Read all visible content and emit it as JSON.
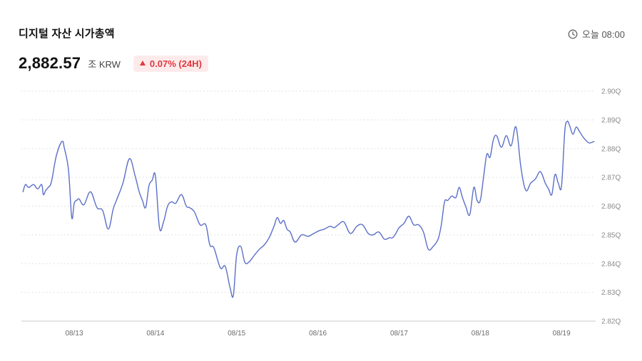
{
  "header": {
    "title": "디지털 자산 시가총액",
    "time_label": "오늘 08:00",
    "value": "2,882.57",
    "unit": "조 KRW",
    "change": "0.07% (24H)",
    "change_direction": "up",
    "change_color": "#e0383e"
  },
  "chart_data": {
    "type": "line",
    "title": "",
    "xlabel": "",
    "ylabel": "",
    "line_color": "#5b6fc7",
    "grid": "horizontal-dotted",
    "y_axis_position": "right",
    "ylim": [
      2.82,
      2.9
    ],
    "y_ticks": [
      "2.90Q",
      "2.89Q",
      "2.88Q",
      "2.87Q",
      "2.86Q",
      "2.85Q",
      "2.84Q",
      "2.83Q",
      "2.82Q"
    ],
    "y_tick_values": [
      2.9,
      2.89,
      2.88,
      2.87,
      2.86,
      2.85,
      2.84,
      2.83,
      2.82
    ],
    "x_tick_labels": [
      "08/13",
      "08/14",
      "08/15",
      "08/16",
      "08/17",
      "08/18",
      "08/19"
    ],
    "x_tick_positions": [
      1,
      2,
      3,
      4,
      5,
      6,
      7
    ],
    "xlim": [
      0.35,
      7.42
    ],
    "series": [
      {
        "x": [
          0.37,
          0.4,
          0.44,
          0.5,
          0.55,
          0.6,
          0.62,
          0.65,
          0.68,
          0.72,
          0.78,
          0.85,
          0.88,
          0.93,
          0.97,
          1.0,
          1.03,
          1.06,
          1.12,
          1.2,
          1.28,
          1.35,
          1.42,
          1.48,
          1.52,
          1.6,
          1.68,
          1.75,
          1.8,
          1.84,
          1.88,
          1.92,
          1.96,
          2.0,
          2.05,
          2.1,
          2.15,
          2.2,
          2.25,
          2.32,
          2.38,
          2.42,
          2.48,
          2.55,
          2.62,
          2.67,
          2.72,
          2.8,
          2.86,
          2.92,
          2.96,
          3.0,
          3.05,
          3.1,
          3.15,
          3.22,
          3.28,
          3.34,
          3.4,
          3.46,
          3.5,
          3.54,
          3.58,
          3.62,
          3.66,
          3.72,
          3.8,
          3.88,
          3.95,
          4.02,
          4.08,
          4.15,
          4.2,
          4.25,
          4.32,
          4.4,
          4.48,
          4.55,
          4.62,
          4.68,
          4.75,
          4.82,
          4.88,
          4.92,
          4.96,
          5.0,
          5.06,
          5.12,
          5.18,
          5.24,
          5.3,
          5.36,
          5.42,
          5.48,
          5.52,
          5.56,
          5.6,
          5.65,
          5.7,
          5.74,
          5.78,
          5.82,
          5.87,
          5.92,
          5.96,
          6.0,
          6.04,
          6.08,
          6.12,
          6.16,
          6.2,
          6.26,
          6.32,
          6.38,
          6.44,
          6.5,
          6.56,
          6.62,
          6.68,
          6.74,
          6.8,
          6.84,
          6.88,
          6.92,
          6.96,
          7.0,
          7.04,
          7.07,
          7.1,
          7.14,
          7.18,
          7.22,
          7.28,
          7.34,
          7.4
        ],
        "y": [
          2.865,
          2.8675,
          2.8665,
          2.8675,
          2.866,
          2.8675,
          2.864,
          2.8655,
          2.8665,
          2.8685,
          2.8775,
          2.8825,
          2.88,
          2.8725,
          2.856,
          2.861,
          2.862,
          2.8625,
          2.8605,
          2.865,
          2.8595,
          2.8585,
          2.852,
          2.859,
          2.862,
          2.868,
          2.8765,
          2.8705,
          2.865,
          2.862,
          2.8595,
          2.867,
          2.869,
          2.8705,
          2.8525,
          2.8545,
          2.86,
          2.8615,
          2.861,
          2.864,
          2.86,
          2.8595,
          2.858,
          2.8535,
          2.8535,
          2.8465,
          2.8455,
          2.8385,
          2.839,
          2.8315,
          2.829,
          2.843,
          2.846,
          2.8405,
          2.8405,
          2.843,
          2.845,
          2.8465,
          2.849,
          2.853,
          2.856,
          2.854,
          2.855,
          2.852,
          2.851,
          2.8475,
          2.85,
          2.8495,
          2.8505,
          2.8515,
          2.852,
          2.853,
          2.8525,
          2.8535,
          2.8545,
          2.8505,
          2.853,
          2.8535,
          2.8505,
          2.85,
          2.851,
          2.8485,
          2.849,
          2.849,
          2.8505,
          2.8525,
          2.854,
          2.8565,
          2.8535,
          2.8535,
          2.851,
          2.845,
          2.846,
          2.8485,
          2.8535,
          2.8615,
          2.862,
          2.8635,
          2.863,
          2.8665,
          2.863,
          2.86,
          2.857,
          2.8665,
          2.862,
          2.862,
          2.87,
          2.878,
          2.877,
          2.883,
          2.8845,
          2.8805,
          2.8845,
          2.881,
          2.8875,
          2.8735,
          2.8655,
          2.868,
          2.8695,
          2.872,
          2.868,
          2.866,
          2.864,
          2.871,
          2.868,
          2.867,
          2.886,
          2.8895,
          2.888,
          2.885,
          2.8875,
          2.886,
          2.8835,
          2.882,
          2.8825
        ]
      }
    ]
  }
}
